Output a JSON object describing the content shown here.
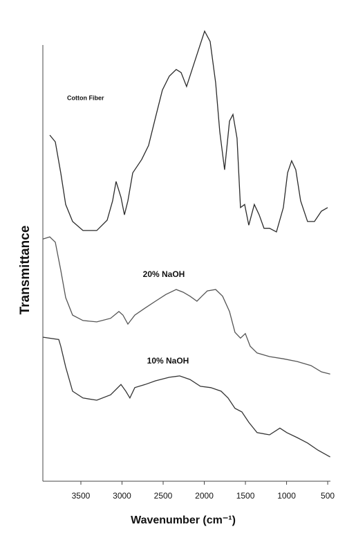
{
  "chart_data": {
    "type": "line",
    "x_label": "Wavenumber (cm⁻¹)",
    "y_label": "Transmittance",
    "xlim": [
      3962,
      467
    ],
    "xticks": [
      3500,
      3000,
      2500,
      2000,
      1500,
      1000,
      500
    ],
    "ylim": [
      0,
      100
    ],
    "grid": false,
    "series": [
      {
        "name": "Cotton Fiber",
        "color": "#2a2a2a",
        "x": [
          3878,
          3811,
          3744,
          3685,
          3601,
          3475,
          3307,
          3181,
          3114,
          3072,
          3013,
          2971,
          2929,
          2870,
          2761,
          2677,
          2593,
          2509,
          2425,
          2341,
          2282,
          2215,
          2148,
          2064,
          1996,
          1929,
          1862,
          1812,
          1753,
          1694,
          1652,
          1602,
          1560,
          1510,
          1459,
          1392,
          1333,
          1274,
          1207,
          1123,
          1039,
          988,
          938,
          888,
          829,
          745,
          661,
          577,
          501
        ],
        "values": [
          76.9,
          75.4,
          68.5,
          61.5,
          57.7,
          55.7,
          55.7,
          58.0,
          62.3,
          66.6,
          63.1,
          59.2,
          62.3,
          68.5,
          71.5,
          74.6,
          80.8,
          86.9,
          90.0,
          91.5,
          90.8,
          87.7,
          91.5,
          96.2,
          100,
          97.7,
          88.5,
          77.7,
          69.2,
          80.0,
          81.5,
          76.2,
          60.8,
          61.5,
          56.9,
          61.5,
          59.2,
          56.2,
          56.2,
          55.4,
          60.8,
          68.5,
          71.2,
          69.2,
          62.3,
          57.7,
          57.7,
          60.0,
          60.8
        ]
      },
      {
        "name": "20% NaOH",
        "color": "#555555",
        "x": [
          3962,
          3878,
          3811,
          3744,
          3685,
          3601,
          3475,
          3307,
          3139,
          3038,
          2988,
          2929,
          2845,
          2719,
          2593,
          2467,
          2341,
          2257,
          2173,
          2089,
          2030,
          1963,
          1862,
          1778,
          1694,
          1627,
          1560,
          1501,
          1442,
          1358,
          1207,
          1039,
          871,
          703,
          577,
          470
        ],
        "values": [
          53.8,
          54.3,
          53.1,
          46.9,
          40.8,
          36.9,
          35.7,
          35.4,
          36.2,
          37.7,
          36.9,
          34.9,
          36.9,
          38.5,
          40.0,
          41.5,
          42.6,
          42.0,
          41.1,
          40.0,
          41.1,
          42.3,
          42.6,
          41.1,
          37.7,
          33.1,
          31.8,
          32.8,
          30.0,
          28.5,
          27.7,
          27.2,
          26.6,
          25.7,
          24.3,
          23.8
        ]
      },
      {
        "name": "10% NaOH",
        "color": "#333333",
        "x": [
          3962,
          3769,
          3744,
          3685,
          3601,
          3475,
          3307,
          3139,
          3013,
          2954,
          2904,
          2845,
          2719,
          2593,
          2425,
          2299,
          2173,
          2047,
          1921,
          1795,
          1711,
          1627,
          1543,
          1459,
          1358,
          1207,
          1081,
          997,
          871,
          745,
          619,
          470
        ],
        "values": [
          32.0,
          31.5,
          30.0,
          25.4,
          20.0,
          18.5,
          18.0,
          19.2,
          21.5,
          20.0,
          18.5,
          20.8,
          21.5,
          22.3,
          23.1,
          23.4,
          22.6,
          21.1,
          20.8,
          20.0,
          18.5,
          16.2,
          15.4,
          13.1,
          10.8,
          10.3,
          11.8,
          10.8,
          9.7,
          8.5,
          6.9,
          5.4
        ]
      }
    ]
  }
}
